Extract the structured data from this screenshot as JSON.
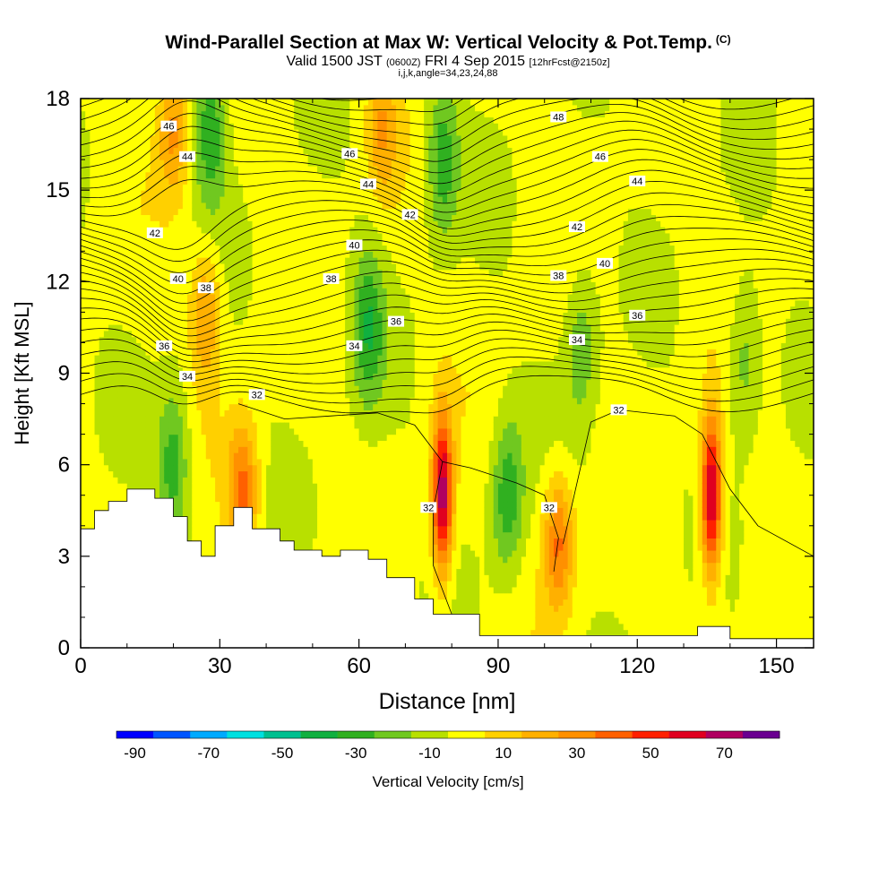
{
  "header": {
    "title": "Wind-Parallel Section at Max W: Vertical Velocity & Pot.Temp.",
    "title_badge": "(C)",
    "valid_prefix": "Valid 1500 JST",
    "valid_utc": "(0600Z)",
    "valid_date": "FRI 4 Sep 2015",
    "valid_forecast": "[12hrFcst@2150z]",
    "meta": "i,j,k,angle=34,23,24,88"
  },
  "chart_data": {
    "type": "heatmap",
    "title": "Wind-Parallel Section at Max W: Vertical Velocity & Pot.Temp.",
    "xlabel": "Distance [nm]",
    "ylabel": "Height [Kft MSL]",
    "xlim": [
      0,
      158
    ],
    "ylim": [
      0,
      18
    ],
    "x_ticks": [
      0,
      30,
      60,
      90,
      120,
      150
    ],
    "y_ticks": [
      0,
      3,
      6,
      9,
      12,
      15,
      18
    ],
    "colorbar": {
      "label": "Vertical Velocity [cm/s]",
      "tick_labels": [
        "-90",
        "-70",
        "-50",
        "-30",
        "-10",
        "10",
        "30",
        "50",
        "70"
      ],
      "levels": [
        -90,
        -80,
        -70,
        -60,
        -50,
        -40,
        -30,
        -20,
        -10,
        0,
        10,
        20,
        30,
        40,
        50,
        60,
        70,
        80
      ],
      "colors": [
        "#0000ff",
        "#0055ff",
        "#00aaff",
        "#00e0e0",
        "#00c090",
        "#10b040",
        "#30b020",
        "#70c820",
        "#b8e000",
        "#ffff00",
        "#ffd000",
        "#ffb000",
        "#ff9000",
        "#ff6000",
        "#ff2000",
        "#e00020",
        "#b00060",
        "#6a0090"
      ]
    },
    "updrafts": [
      {
        "x": 78,
        "y": 5.0,
        "w_max": 75
      },
      {
        "x": 136,
        "y": 5.0,
        "w_max": 75
      },
      {
        "x": 35,
        "y": 5.2,
        "w_max": 40
      },
      {
        "x": 103,
        "y": 3.5,
        "w_max": 40
      },
      {
        "x": 27,
        "y": 11.0,
        "w_max": 30
      },
      {
        "x": 20,
        "y": 17.0,
        "w_max": 30
      },
      {
        "x": 65,
        "y": 17.0,
        "w_max": 25
      }
    ],
    "downdrafts": [
      {
        "x": 92,
        "y": 5.0,
        "w_min": -30
      },
      {
        "x": 20,
        "y": 6.0,
        "w_min": -30
      },
      {
        "x": 62,
        "y": 10.5,
        "w_min": -30
      },
      {
        "x": 28,
        "y": 17.0,
        "w_min": -30
      },
      {
        "x": 78,
        "y": 16.0,
        "w_min": -30
      },
      {
        "x": 108,
        "y": 10.0,
        "w_min": -20
      },
      {
        "x": 143,
        "y": 9.5,
        "w_min": -20
      }
    ],
    "theta_contours": {
      "units": "C",
      "levels": [
        32,
        34,
        36,
        38,
        40,
        42,
        44,
        46,
        48
      ],
      "labels": [
        {
          "text": "48",
          "x": 103,
          "y": 17.4
        },
        {
          "text": "46",
          "x": 19,
          "y": 17.1
        },
        {
          "text": "46",
          "x": 58,
          "y": 16.2
        },
        {
          "text": "46",
          "x": 112,
          "y": 16.1
        },
        {
          "text": "44",
          "x": 23,
          "y": 16.1
        },
        {
          "text": "44",
          "x": 62,
          "y": 15.2
        },
        {
          "text": "44",
          "x": 120,
          "y": 15.3
        },
        {
          "text": "42",
          "x": 16,
          "y": 13.6
        },
        {
          "text": "42",
          "x": 71,
          "y": 14.2
        },
        {
          "text": "42",
          "x": 107,
          "y": 13.8
        },
        {
          "text": "40",
          "x": 21,
          "y": 12.1
        },
        {
          "text": "40",
          "x": 59,
          "y": 13.2
        },
        {
          "text": "40",
          "x": 113,
          "y": 12.6
        },
        {
          "text": "38",
          "x": 27,
          "y": 11.8
        },
        {
          "text": "38",
          "x": 54,
          "y": 12.1
        },
        {
          "text": "38",
          "x": 103,
          "y": 12.2
        },
        {
          "text": "36",
          "x": 18,
          "y": 9.9
        },
        {
          "text": "36",
          "x": 68,
          "y": 10.7
        },
        {
          "text": "36",
          "x": 120,
          "y": 10.9
        },
        {
          "text": "34",
          "x": 23,
          "y": 8.9
        },
        {
          "text": "34",
          "x": 59,
          "y": 9.9
        },
        {
          "text": "34",
          "x": 107,
          "y": 10.1
        },
        {
          "text": "32",
          "x": 38,
          "y": 8.3
        },
        {
          "text": "32",
          "x": 116,
          "y": 7.8
        },
        {
          "text": "32",
          "x": 75,
          "y": 4.6
        },
        {
          "text": "32",
          "x": 101,
          "y": 4.6
        }
      ]
    },
    "terrain": {
      "x": [
        0,
        3,
        3,
        6,
        6,
        10,
        10,
        16,
        16,
        20,
        20,
        23,
        23,
        26,
        26,
        29,
        29,
        33,
        33,
        37,
        37,
        43,
        43,
        46,
        46,
        52,
        52,
        56,
        56,
        62,
        62,
        66,
        66,
        72,
        72,
        76,
        76,
        86,
        86,
        92,
        92,
        133,
        133,
        140,
        140,
        158
      ],
      "y": [
        3.9,
        3.9,
        4.5,
        4.5,
        4.8,
        4.8,
        5.2,
        5.2,
        4.9,
        4.9,
        4.3,
        4.3,
        3.5,
        3.5,
        3.0,
        3.0,
        4.0,
        4.0,
        4.6,
        4.6,
        3.9,
        3.9,
        3.5,
        3.5,
        3.2,
        3.2,
        3.0,
        3.0,
        3.2,
        3.2,
        2.9,
        2.9,
        2.3,
        2.3,
        1.6,
        1.6,
        1.1,
        1.1,
        0.4,
        0.4,
        0.4,
        0.4,
        0.7,
        0.7,
        0.3,
        0.3
      ]
    }
  }
}
